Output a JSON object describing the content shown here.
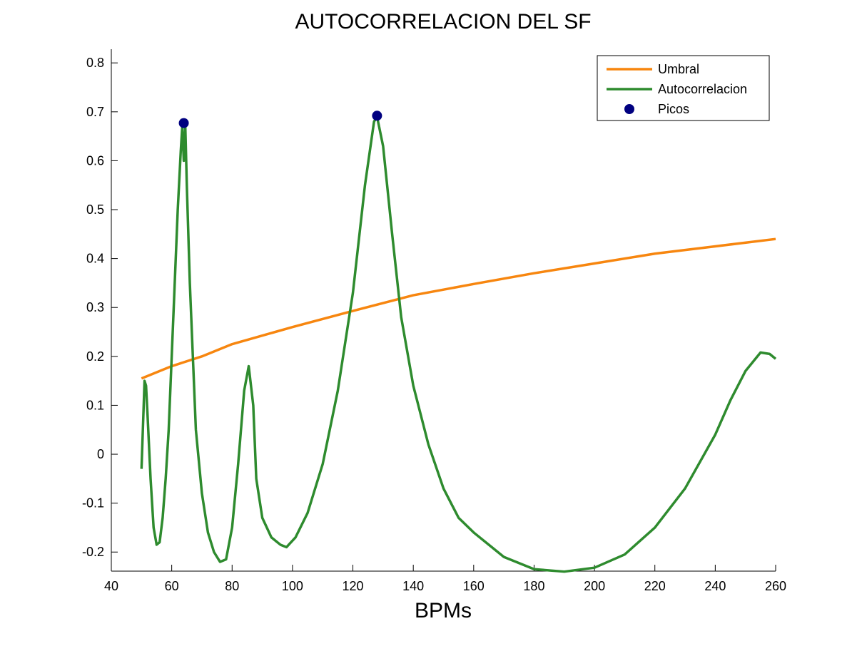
{
  "chart_data": {
    "type": "line",
    "title": "AUTOCORRELACION DEL SF",
    "x_label": "BPMs",
    "xlim": [
      40,
      260
    ],
    "xticks": [
      40,
      60,
      80,
      100,
      120,
      140,
      160,
      180,
      200,
      220,
      240,
      260
    ],
    "ylim": [
      -0.239,
      0.828
    ],
    "yticks": [
      -0.2,
      -0.1,
      0,
      0.1,
      0.2,
      0.3,
      0.4,
      0.5,
      0.6,
      0.7,
      0.8
    ],
    "legend_position": "upper-right",
    "series": [
      {
        "name": "Umbral",
        "type": "line",
        "color": "#f7860f",
        "x": [
          50,
          60,
          70,
          80,
          100,
          120,
          140,
          160,
          180,
          200,
          220,
          240,
          260
        ],
        "values": [
          0.155,
          0.18,
          0.2,
          0.225,
          0.26,
          0.293,
          0.325,
          0.348,
          0.37,
          0.39,
          0.41,
          0.425,
          0.44
        ]
      },
      {
        "name": "Autocorrelacion",
        "type": "line",
        "color": "#2e8b2e",
        "x": [
          50,
          51,
          51.5,
          52,
          53,
          54,
          55,
          56,
          57,
          58,
          59,
          60,
          61,
          62,
          63,
          63.5,
          64,
          64.5,
          65,
          66,
          67,
          68,
          70,
          72,
          74,
          76,
          78,
          80,
          82,
          84,
          85.5,
          87,
          88,
          90,
          93,
          96,
          98,
          101,
          105,
          110,
          115,
          120,
          124,
          127,
          128,
          130,
          133,
          136,
          140,
          145,
          150,
          155,
          160,
          170,
          180,
          190,
          200,
          210,
          220,
          230,
          240,
          245,
          250,
          255,
          258,
          260
        ],
        "values": [
          -0.03,
          0.15,
          0.14,
          0.08,
          -0.05,
          -0.15,
          -0.185,
          -0.18,
          -0.13,
          -0.05,
          0.05,
          0.2,
          0.35,
          0.5,
          0.62,
          0.67,
          0.6,
          0.67,
          0.55,
          0.35,
          0.2,
          0.05,
          -0.08,
          -0.16,
          -0.2,
          -0.22,
          -0.215,
          -0.15,
          -0.02,
          0.13,
          0.18,
          0.1,
          -0.05,
          -0.13,
          -0.17,
          -0.185,
          -0.19,
          -0.17,
          -0.12,
          -0.02,
          0.13,
          0.33,
          0.55,
          0.68,
          0.69,
          0.63,
          0.45,
          0.28,
          0.14,
          0.02,
          -0.07,
          -0.13,
          -0.16,
          -0.21,
          -0.235,
          -0.24,
          -0.232,
          -0.205,
          -0.15,
          -0.07,
          0.04,
          0.11,
          0.17,
          0.208,
          0.205,
          0.195
        ]
      },
      {
        "name": "Picos",
        "type": "scatter",
        "color": "#000080",
        "x": [
          64,
          128
        ],
        "values": [
          0.677,
          0.692
        ]
      }
    ]
  }
}
